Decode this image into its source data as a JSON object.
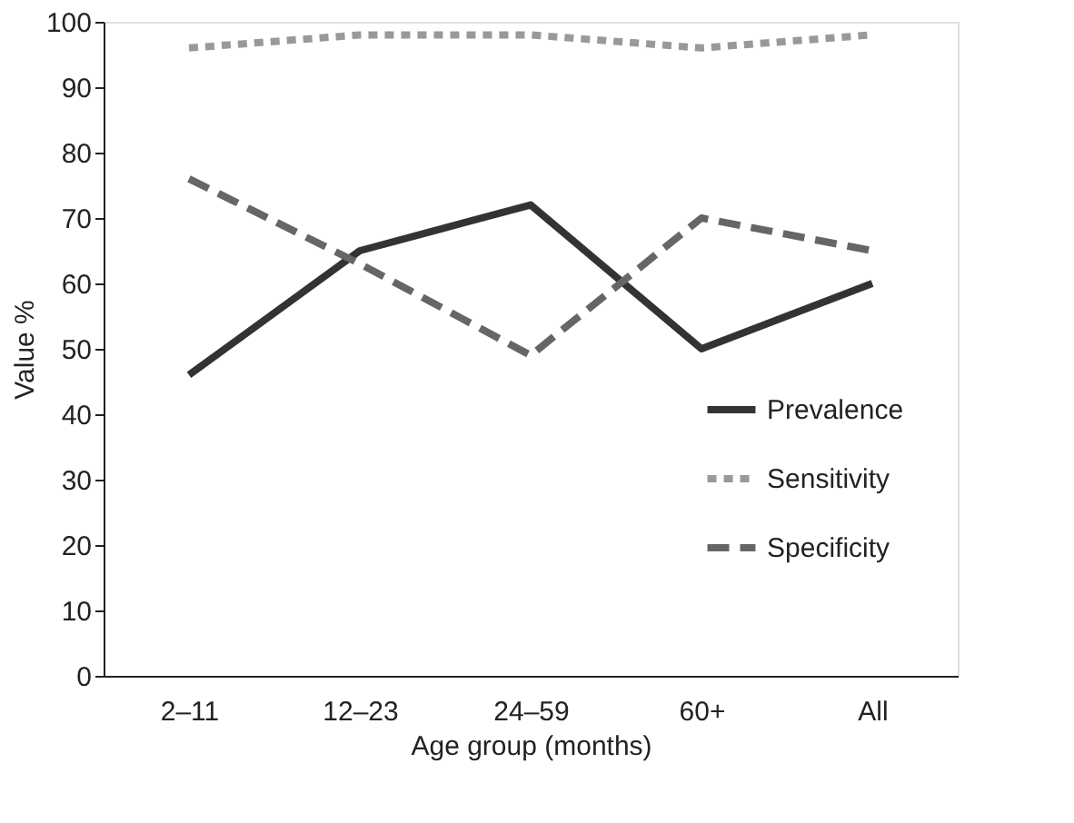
{
  "chart_data": {
    "type": "line",
    "xlabel": "Age group (months)",
    "ylabel": "Value %",
    "categories": [
      "2–11",
      "12–23",
      "24–59",
      "60+",
      "All"
    ],
    "series": [
      {
        "name": "Prevalence",
        "color": "#333333",
        "line_style": "solid",
        "values": [
          46,
          65,
          72,
          50,
          60
        ]
      },
      {
        "name": "Sensitivity",
        "color": "#999999",
        "line_style": "dotted",
        "values": [
          96,
          98,
          98,
          96,
          98
        ]
      },
      {
        "name": "Specificity",
        "color": "#666666",
        "line_style": "dashed",
        "values": [
          76,
          63,
          49,
          70,
          65
        ]
      }
    ],
    "ylim": [
      0,
      100
    ],
    "yticks": [
      0,
      10,
      20,
      30,
      40,
      50,
      60,
      70,
      80,
      90,
      100
    ],
    "grid": false,
    "legend": "right",
    "marker": "none"
  }
}
